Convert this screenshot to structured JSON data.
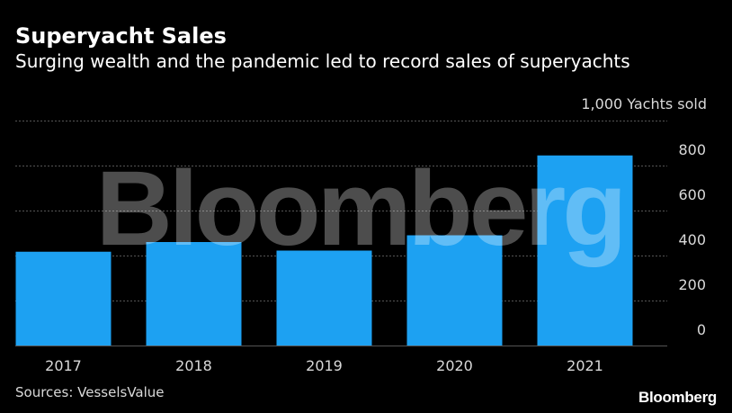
{
  "header": {
    "title": "Superyacht Sales",
    "subtitle": "Surging wealth and the pandemic led to record sales of superyachts"
  },
  "chart_data": {
    "type": "bar",
    "categories": [
      "2017",
      "2018",
      "2019",
      "2020",
      "2021"
    ],
    "values": [
      417,
      460,
      422,
      490,
      845
    ],
    "ylabel": "1,000 Yachts sold",
    "ylim": [
      0,
      1000
    ],
    "yticks": [
      0,
      200,
      400,
      600,
      800
    ],
    "ytick_labels": [
      "0",
      "200",
      "400",
      "600",
      "800"
    ],
    "grid": true,
    "bar_color": "#1da1f2",
    "gridline_color": "#555555",
    "watermark": "Bloomberg"
  },
  "footer": {
    "source": "Sources: VesselsValue",
    "brand": "Bloomberg"
  }
}
